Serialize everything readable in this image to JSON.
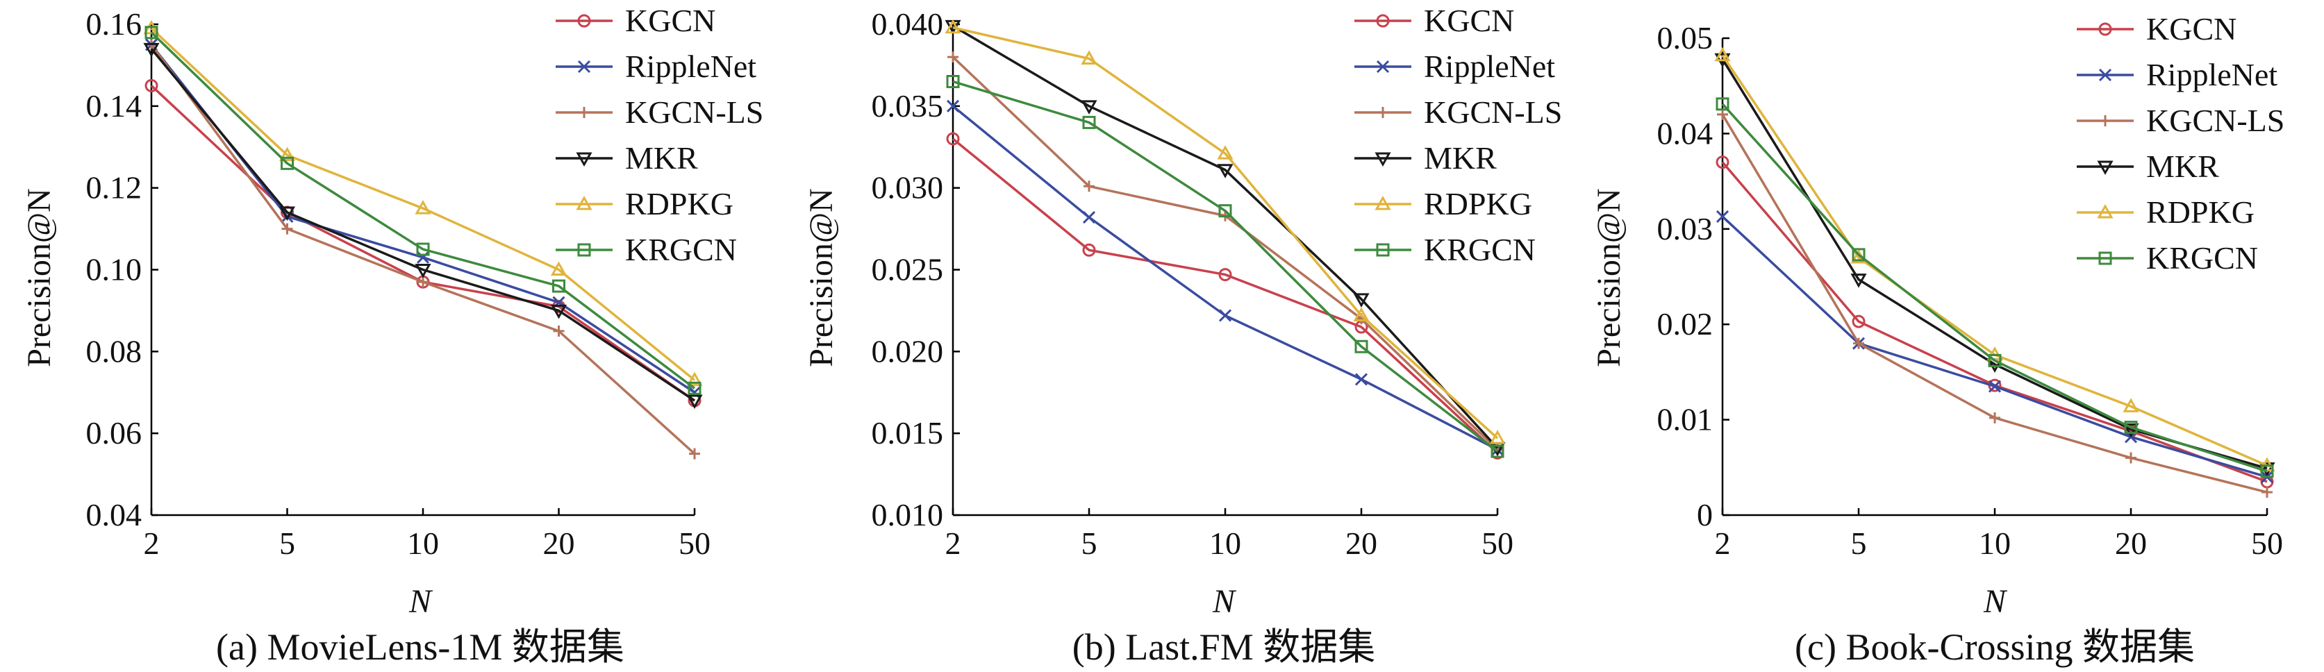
{
  "legend_labels": [
    "KGCN",
    "RippleNet",
    "KGCN-LS",
    "MKR",
    "RDPKG",
    "KRGCN"
  ],
  "colors": {
    "KGCN": "#c8414c",
    "RippleNet": "#3a4ca0",
    "KGCN-LS": "#b5735a",
    "MKR": "#1a1a1a",
    "RDPKG": "#e0b43c",
    "KRGCN": "#3e8a3e"
  },
  "markers": {
    "KGCN": "circle",
    "RippleNet": "x",
    "KGCN-LS": "plus",
    "MKR": "triangle-down",
    "RDPKG": "triangle-up",
    "KRGCN": "square"
  },
  "chart_data": [
    {
      "type": "line",
      "title": "(a) MovieLens-1M 数据集",
      "xlabel": "N",
      "ylabel": "Precision@N",
      "categories": [
        "2",
        "5",
        "10",
        "20",
        "50"
      ],
      "ylim": [
        0.04,
        0.16
      ],
      "yticks": [
        0.04,
        0.06,
        0.08,
        0.1,
        0.12,
        0.14,
        0.16
      ],
      "ytick_labels": [
        "0.04",
        "0.06",
        "0.08",
        "0.10",
        "0.12",
        "0.14",
        "0.16"
      ],
      "series": [
        {
          "name": "KGCN",
          "values": [
            0.145,
            0.114,
            0.097,
            0.091,
            0.068
          ]
        },
        {
          "name": "RippleNet",
          "values": [
            0.155,
            0.113,
            0.103,
            0.092,
            0.07
          ]
        },
        {
          "name": "KGCN-LS",
          "values": [
            0.155,
            0.11,
            0.097,
            0.085,
            0.055
          ]
        },
        {
          "name": "MKR",
          "values": [
            0.154,
            0.114,
            0.1,
            0.09,
            0.068
          ]
        },
        {
          "name": "RDPKG",
          "values": [
            0.159,
            0.128,
            0.115,
            0.1,
            0.073
          ]
        },
        {
          "name": "KRGCN",
          "values": [
            0.158,
            0.126,
            0.105,
            0.096,
            0.071
          ]
        }
      ]
    },
    {
      "type": "line",
      "title": "(b) Last.FM 数据集",
      "xlabel": "N",
      "ylabel": "Precision@N",
      "categories": [
        "2",
        "5",
        "10",
        "20",
        "50"
      ],
      "ylim": [
        0.01,
        0.04
      ],
      "yticks": [
        0.01,
        0.015,
        0.02,
        0.025,
        0.03,
        0.035,
        0.04
      ],
      "ytick_labels": [
        "0.010",
        "0.015",
        "0.020",
        "0.025",
        "0.030",
        "0.035",
        "0.040"
      ],
      "series": [
        {
          "name": "KGCN",
          "values": [
            0.033,
            0.0262,
            0.0247,
            0.0215,
            0.0138
          ]
        },
        {
          "name": "RippleNet",
          "values": [
            0.035,
            0.0282,
            0.0222,
            0.0183,
            0.014
          ]
        },
        {
          "name": "KGCN-LS",
          "values": [
            0.038,
            0.0301,
            0.0283,
            0.022,
            0.014
          ]
        },
        {
          "name": "MKR",
          "values": [
            0.0399,
            0.035,
            0.0311,
            0.0232,
            0.0141
          ]
        },
        {
          "name": "RDPKG",
          "values": [
            0.0398,
            0.0379,
            0.0321,
            0.0222,
            0.0147
          ]
        },
        {
          "name": "KRGCN",
          "values": [
            0.0365,
            0.034,
            0.0286,
            0.0203,
            0.0139
          ]
        }
      ]
    },
    {
      "type": "line",
      "title": "(c) Book-Crossing 数据集",
      "xlabel": "N",
      "ylabel": "Precision@N",
      "categories": [
        "2",
        "5",
        "10",
        "20",
        "50"
      ],
      "ylim": [
        0,
        0.05
      ],
      "yticks": [
        0,
        0.01,
        0.02,
        0.03,
        0.04,
        0.05
      ],
      "ytick_labels": [
        "0",
        "0.01",
        "0.02",
        "0.03",
        "0.04",
        "0.05"
      ],
      "series": [
        {
          "name": "KGCN",
          "values": [
            0.037,
            0.0203,
            0.0136,
            0.0088,
            0.0035
          ]
        },
        {
          "name": "RippleNet",
          "values": [
            0.0313,
            0.018,
            0.0135,
            0.0082,
            0.004
          ]
        },
        {
          "name": "KGCN-LS",
          "values": [
            0.042,
            0.018,
            0.0102,
            0.006,
            0.0024
          ]
        },
        {
          "name": "MKR",
          "values": [
            0.0478,
            0.0247,
            0.0158,
            0.009,
            0.0049
          ]
        },
        {
          "name": "RDPKG",
          "values": [
            0.0482,
            0.027,
            0.0168,
            0.0114,
            0.0052
          ]
        },
        {
          "name": "KRGCN",
          "values": [
            0.0431,
            0.0273,
            0.0162,
            0.0092,
            0.0046
          ]
        }
      ]
    }
  ]
}
